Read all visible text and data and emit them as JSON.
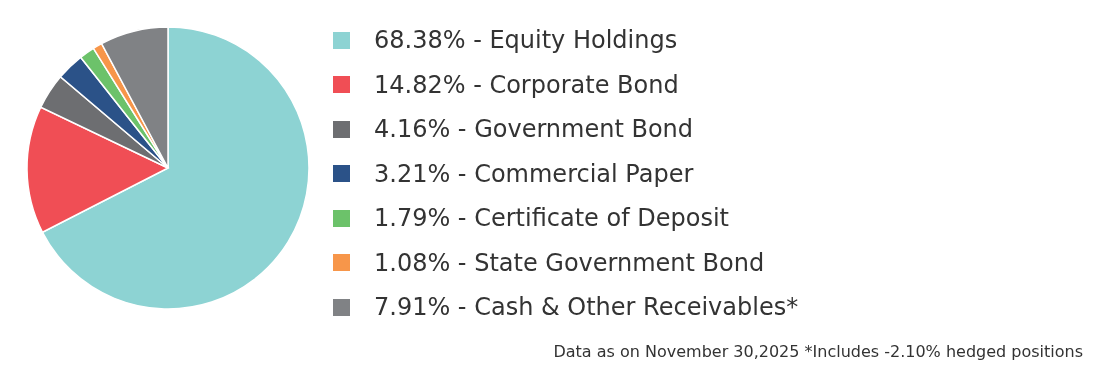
{
  "chart_data": {
    "type": "pie",
    "categories": [
      "Equity Holdings",
      "Corporate Bond",
      "Government Bond",
      "Commercial Paper",
      "Certificate of Deposit",
      "State Government Bond",
      "Cash & Other Receivables*"
    ],
    "values": [
      68.38,
      14.82,
      4.16,
      3.21,
      1.79,
      1.08,
      7.91
    ],
    "value_labels": [
      "68.38%",
      "14.82%",
      "4.16%",
      "3.21%",
      "1.79%",
      "1.08%",
      "7.91%"
    ],
    "colors": [
      "#8dd3d3",
      "#f04e55",
      "#6d6e71",
      "#2b5288",
      "#6cc26a",
      "#f7964a",
      "#808285"
    ],
    "legend": "right",
    "annotations": [
      "Data as on November 30,2025 *Includes -2.10% hedged positions"
    ]
  }
}
